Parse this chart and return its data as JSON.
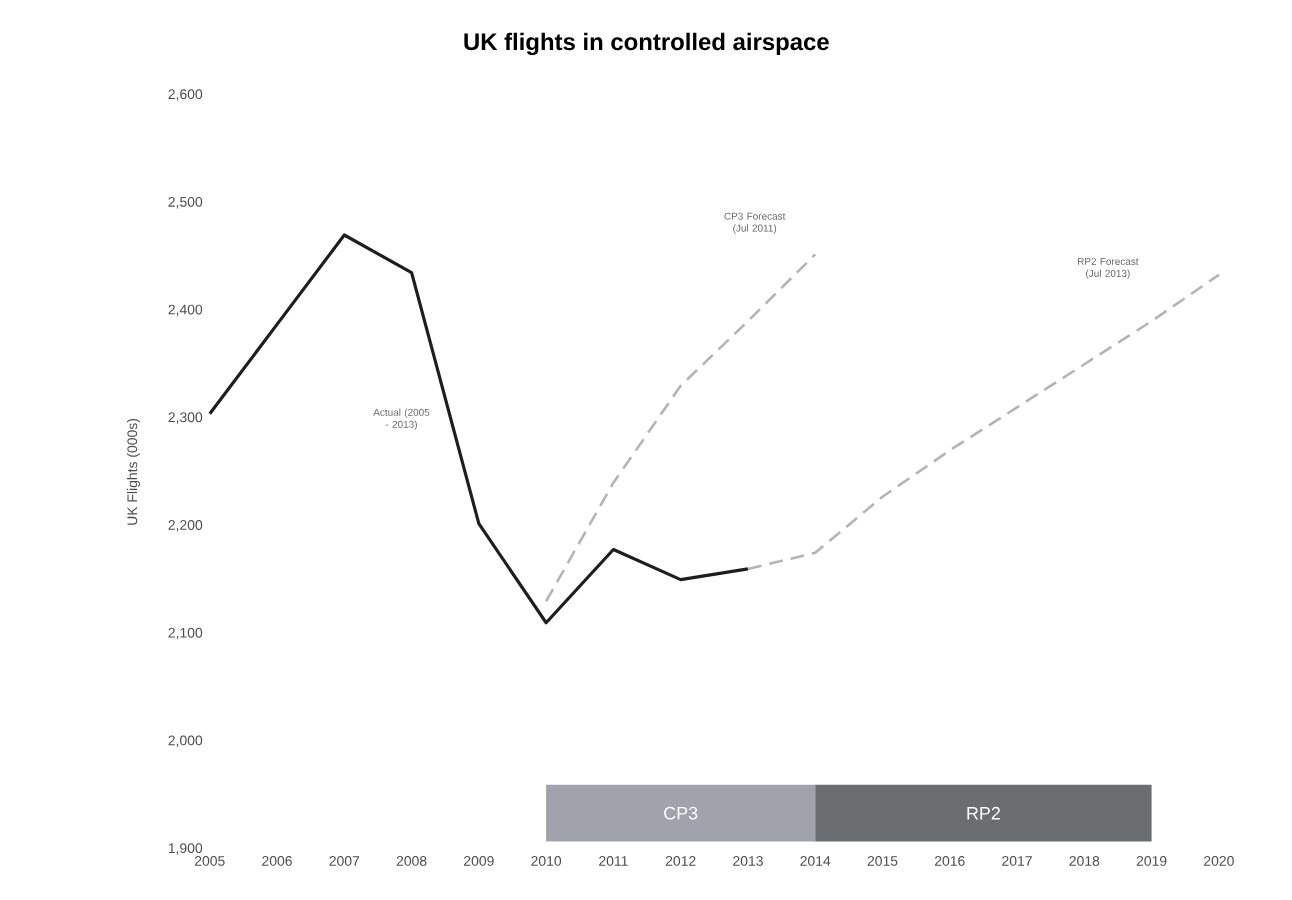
{
  "chart_data": {
    "type": "line",
    "title": "UK flights in controlled airspace",
    "ylabel": "UK Flights (000s)",
    "xlim": [
      2005,
      2020
    ],
    "xticks": [
      2005,
      2006,
      2007,
      2008,
      2009,
      2010,
      2011,
      2012,
      2013,
      2014,
      2015,
      2016,
      2017,
      2018,
      2019,
      2020
    ],
    "ylim": [
      1900,
      2600
    ],
    "yticks": [
      {
        "value": 1900,
        "label": "1,900"
      },
      {
        "value": 2000,
        "label": "2,000"
      },
      {
        "value": 2100,
        "label": "2,100"
      },
      {
        "value": 2200,
        "label": "2,200"
      },
      {
        "value": 2300,
        "label": "2,300"
      },
      {
        "value": 2400,
        "label": "2,400"
      },
      {
        "value": 2500,
        "label": "2,500"
      },
      {
        "value": 2600,
        "label": "2,600"
      }
    ],
    "grid": false,
    "marker": "none",
    "series": [
      {
        "color": "#1e1e1e",
        "line_style": "solid",
        "x": [
          2005,
          2006,
          2007,
          2008,
          2009,
          2010,
          2011,
          2012,
          2013
        ],
        "values": [
          2304,
          2387,
          2470,
          2435,
          2202,
          2110,
          2178,
          2150,
          2160
        ]
      },
      {
        "color": "#b4b4b4",
        "line_style": "dashed",
        "x": [
          2010,
          2011,
          2012,
          2013,
          2014
        ],
        "values": [
          2130,
          2240,
          2330,
          2390,
          2452
        ]
      },
      {
        "color": "#b4b4b4",
        "line_style": "dashed",
        "x": [
          2013,
          2014,
          2015,
          2016,
          2017,
          2018,
          2019,
          2020
        ],
        "values": [
          2160,
          2175,
          2227,
          2270,
          2310,
          2350,
          2390,
          2433
        ]
      }
    ],
    "annotations": [
      "Actual (2005 - 2013)",
      "CP3 Forecast (Jul 2011)",
      "RP2 Forecast (Jul 2013)"
    ],
    "bands": [
      {
        "axis": "x",
        "from": 2010,
        "to": 2014,
        "label": "CP3",
        "color": "#a0a3ab"
      },
      {
        "axis": "x",
        "from": 2014,
        "to": 2019,
        "label": "RP2",
        "color": "#6b6e70"
      }
    ]
  }
}
